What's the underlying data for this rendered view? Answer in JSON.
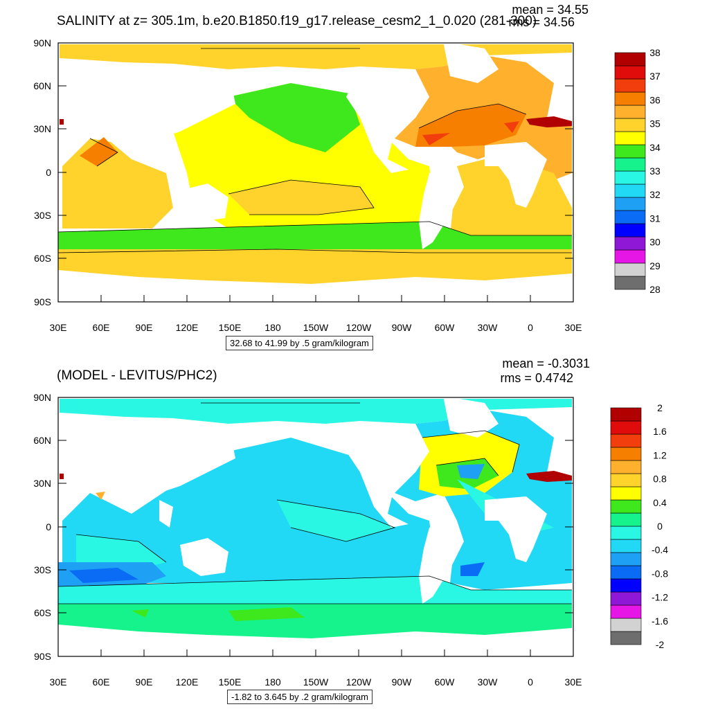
{
  "panels": [
    {
      "title": "SALINITY at z= 305.1m, b.e20.B1850.f19_g17.release_cesm2_1_0.020 (281-300)",
      "mean": "mean = 34.55",
      "rms": "rms = 34.56",
      "info": "32.68 to 41.99 by .5 gram/kilogram",
      "lat_labels": [
        "90N",
        "60N",
        "30N",
        "0",
        "30S",
        "60S",
        "90S"
      ],
      "lon_labels": [
        "30E",
        "60E",
        "90E",
        "120E",
        "150E",
        "180",
        "150W",
        "120W",
        "90W",
        "60W",
        "30W",
        "0",
        "30E"
      ],
      "colorbar": {
        "colors": [
          "#6e6e6e",
          "#d2d2d2",
          "#e617e6",
          "#8f17d6",
          "#0000ff",
          "#0a6cf5",
          "#1ea0f5",
          "#21d8f5",
          "#2af7e3",
          "#16f28c",
          "#3ee81c",
          "#ffff00",
          "#ffd22c",
          "#ffb02c",
          "#f77f00",
          "#f23d0c",
          "#e00b0b",
          "#b00000"
        ],
        "labels": [
          "28",
          "29",
          "30",
          "31",
          "32",
          "33",
          "34",
          "35",
          "36",
          "37",
          "38"
        ]
      }
    },
    {
      "title": "(MODEL - LEVITUS/PHC2)",
      "mean": "mean = -0.3031",
      "rms": "rms = 0.4742",
      "info": "-1.82 to 3.645 by .2 gram/kilogram",
      "lat_labels": [
        "90N",
        "60N",
        "30N",
        "0",
        "30S",
        "60S",
        "90S"
      ],
      "lon_labels": [
        "30E",
        "60E",
        "90E",
        "120E",
        "150E",
        "180",
        "150W",
        "120W",
        "90W",
        "60W",
        "30W",
        "0",
        "30E"
      ],
      "colorbar": {
        "colors": [
          "#6e6e6e",
          "#d2d2d2",
          "#e617e6",
          "#8f17d6",
          "#0000ff",
          "#0a6cf5",
          "#1ea0f5",
          "#21d8f5",
          "#2af7e3",
          "#16f28c",
          "#3ee81c",
          "#ffff00",
          "#ffd22c",
          "#ffb02c",
          "#f77f00",
          "#f23d0c",
          "#e00b0b",
          "#b00000"
        ],
        "labels": [
          "-2",
          "-1.6",
          "-1.2",
          "-0.8",
          "-0.4",
          "0",
          "0.4",
          "0.8",
          "1.2",
          "1.6",
          "2"
        ]
      }
    }
  ]
}
